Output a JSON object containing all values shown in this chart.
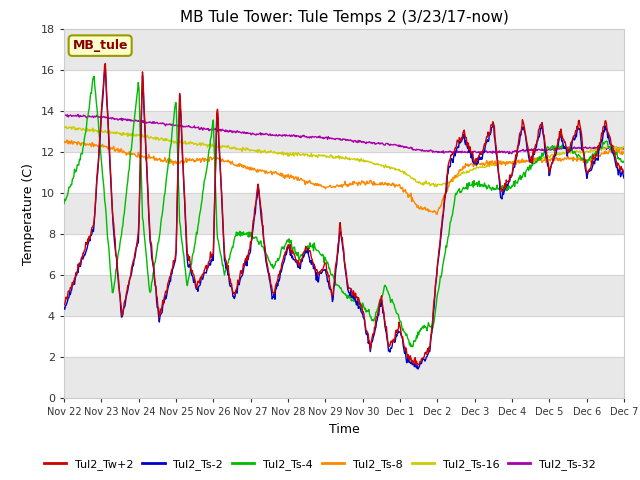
{
  "title": "MB Tule Tower: Tule Temps 2 (3/23/17-now)",
  "xlabel": "Time",
  "ylabel": "Temperature (C)",
  "ylim": [
    0,
    18
  ],
  "yticks": [
    0,
    2,
    4,
    6,
    8,
    10,
    12,
    14,
    16,
    18
  ],
  "bg_color": "#ffffff",
  "legend_label": "MB_tule",
  "series_colors": {
    "Tul2_Tw+2": "#cc0000",
    "Tul2_Ts-2": "#0000cc",
    "Tul2_Ts-4": "#00bb00",
    "Tul2_Ts-8": "#ff8800",
    "Tul2_Ts-16": "#cccc00",
    "Tul2_Ts-32": "#aa00aa"
  },
  "xtick_labels": [
    "Nov 22",
    "Nov 23",
    "Nov 24",
    "Nov 25",
    "Nov 26",
    "Nov 27",
    "Nov 28",
    "Nov 29",
    "Nov 30",
    "Dec 1",
    "Dec 2",
    "Dec 3",
    "Dec 4",
    "Dec 5",
    "Dec 6",
    "Dec 7"
  ],
  "title_fontsize": 11,
  "axis_fontsize": 9,
  "tick_fontsize": 8,
  "band_color": "#e8e8e8",
  "band_ranges": [
    [
      0,
      2
    ],
    [
      4,
      6
    ],
    [
      8,
      10
    ],
    [
      12,
      14
    ],
    [
      16,
      18
    ]
  ]
}
